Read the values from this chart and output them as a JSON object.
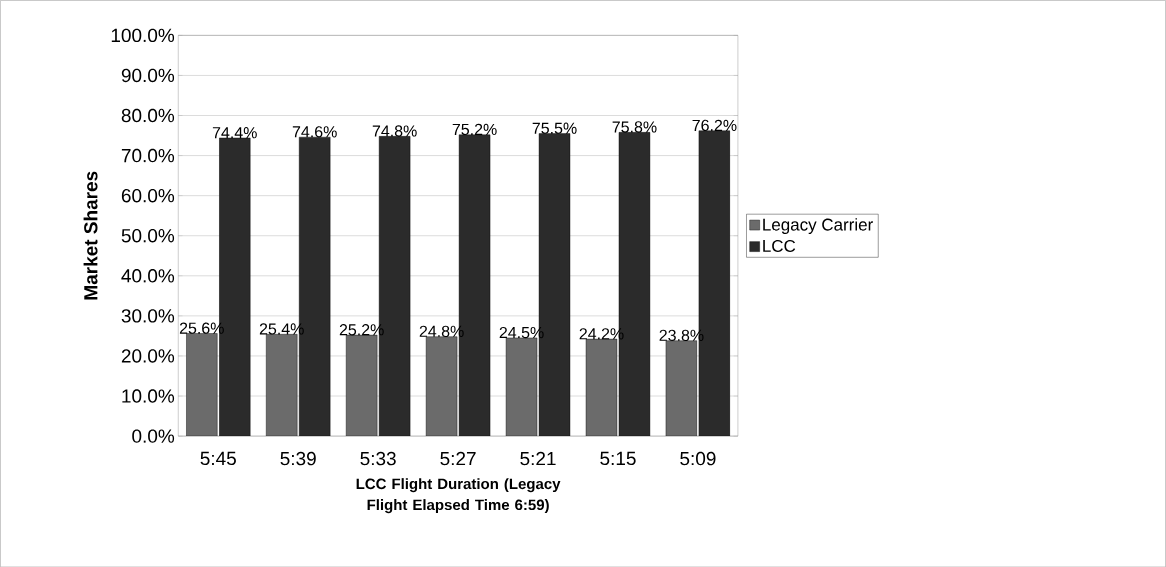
{
  "chart_data": {
    "type": "bar",
    "categories": [
      "5:45",
      "5:39",
      "5:33",
      "5:27",
      "5:21",
      "5:15",
      "5:09"
    ],
    "series": [
      {
        "name": "Legacy Carrier",
        "color": "#6b6b6b",
        "values": [
          25.6,
          25.4,
          25.2,
          24.8,
          24.5,
          24.2,
          23.8
        ],
        "value_labels": [
          "25.6%",
          "25.4%",
          "25.2%",
          "24.8%",
          "24.5%",
          "24.2%",
          "23.8%"
        ]
      },
      {
        "name": "LCC",
        "color": "#2b2b2b",
        "values": [
          74.4,
          74.6,
          74.8,
          75.2,
          75.5,
          75.8,
          76.2
        ],
        "value_labels": [
          "74.4%",
          "74.6%",
          "74.8%",
          "75.2%",
          "75.5%",
          "75.8%",
          "76.2%"
        ]
      }
    ],
    "xlabel": "LCC Flight Duration (Legacy Flight Elapsed Time 6:59)",
    "ylabel": "Market Shares",
    "ylim": [
      0,
      100
    ],
    "yticks": [
      {
        "value": 0,
        "label": "0.0%"
      },
      {
        "value": 10,
        "label": "10.0%"
      },
      {
        "value": 20,
        "label": "20.0%"
      },
      {
        "value": 30,
        "label": "30.0%"
      },
      {
        "value": 40,
        "label": "40.0%"
      },
      {
        "value": 50,
        "label": "50.0%"
      },
      {
        "value": 60,
        "label": "60.0%"
      },
      {
        "value": 70,
        "label": "70.0%"
      },
      {
        "value": 80,
        "label": "80.0%"
      },
      {
        "value": 90,
        "label": "90.0%"
      },
      {
        "value": 100,
        "label": "100.0%"
      }
    ],
    "grid": "y",
    "legend": "right"
  }
}
